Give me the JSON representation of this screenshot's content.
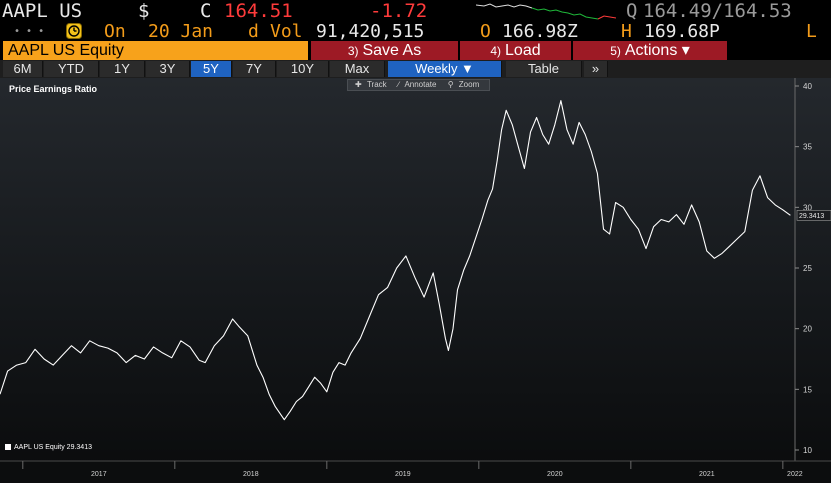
{
  "quote": {
    "ticker": "AAPL US",
    "currency": "$",
    "close_flag": "C",
    "price": "164.51",
    "change": "-1.72",
    "bid_ask_prefix": "Q",
    "bid_ask": "164.49/164.53"
  },
  "trade": {
    "on_label": "On",
    "date": "20 Jan",
    "period": "d",
    "vol_label": "Vol",
    "volume": "91,420,515",
    "open_label": "O",
    "open": "166.98Z",
    "high_label": "H",
    "high": "169.68P",
    "low_label": "L"
  },
  "toolbar": {
    "security": "AAPL US Equity",
    "save_num": "3)",
    "save_label": "Save As",
    "load_num": "4)",
    "load_label": "Load",
    "actions_num": "5)",
    "actions_label": "Actions ▾"
  },
  "ranges": [
    "6M",
    "YTD",
    "1Y",
    "3Y",
    "5Y",
    "7Y",
    "10Y",
    "Max"
  ],
  "selected_range": "5Y",
  "frequency": "Weekly ▼",
  "table_label": "Table",
  "more_label": "»",
  "chart_tools": {
    "track": "Track",
    "annotate": "Annotate",
    "zoom": "Zoom"
  },
  "legend": {
    "name": "AAPL US Equity",
    "value": "29.3413"
  },
  "colors": {
    "accent_orange": "#f7a21b",
    "button_red": "#9d1a25",
    "selected_blue": "#1f63c1",
    "negative_red": "#ff3b3b"
  },
  "chart_data": {
    "type": "line",
    "title": "Price Earnings Ratio",
    "xlabel": "",
    "ylabel": "",
    "ylim": [
      10,
      40
    ],
    "yticks": [
      10,
      15,
      20,
      25,
      30,
      35,
      40
    ],
    "xlim": [
      2016.85,
      2022.08
    ],
    "xticks": [
      "2017",
      "2018",
      "2019",
      "2020",
      "2021",
      "2022"
    ],
    "last_value": "29.3413",
    "legend_position": "bottom-left",
    "series": [
      {
        "name": "AAPL US Equity",
        "x": [
          2016.85,
          2016.9,
          2016.96,
          2017.02,
          2017.08,
          2017.14,
          2017.2,
          2017.26,
          2017.32,
          2017.38,
          2017.44,
          2017.5,
          2017.56,
          2017.62,
          2017.68,
          2017.74,
          2017.8,
          2017.86,
          2017.92,
          2017.98,
          2018.04,
          2018.1,
          2018.16,
          2018.2,
          2018.26,
          2018.32,
          2018.38,
          2018.42,
          2018.48,
          2018.54,
          2018.58,
          2018.62,
          2018.66,
          2018.72,
          2018.76,
          2018.8,
          2018.84,
          2018.88,
          2018.92,
          2018.96,
          2019.0,
          2019.04,
          2019.08,
          2019.12,
          2019.16,
          2019.22,
          2019.28,
          2019.34,
          2019.4,
          2019.46,
          2019.52,
          2019.58,
          2019.64,
          2019.7,
          2019.74,
          2019.78,
          2019.8,
          2019.83,
          2019.86,
          2019.9,
          2019.94,
          2019.98,
          2020.02,
          2020.06,
          2020.09,
          2020.12,
          2020.15,
          2020.18,
          2020.22,
          2020.26,
          2020.3,
          2020.34,
          2020.38,
          2020.42,
          2020.46,
          2020.5,
          2020.54,
          2020.58,
          2020.62,
          2020.66,
          2020.7,
          2020.74,
          2020.78,
          2020.82,
          2020.86,
          2020.9,
          2020.95,
          2021.0,
          2021.05,
          2021.1,
          2021.15,
          2021.2,
          2021.25,
          2021.3,
          2021.35,
          2021.4,
          2021.45,
          2021.5,
          2021.55,
          2021.6,
          2021.65,
          2021.7,
          2021.75,
          2021.8,
          2021.85,
          2021.9,
          2021.95,
          2022.0,
          2022.05
        ],
        "values": [
          14.6,
          16.5,
          17.0,
          17.2,
          18.3,
          17.5,
          17.0,
          17.8,
          18.6,
          18.0,
          19.0,
          18.6,
          18.4,
          18.0,
          17.2,
          17.8,
          17.5,
          18.5,
          18.0,
          17.6,
          19.0,
          18.5,
          17.4,
          17.2,
          18.6,
          19.4,
          20.8,
          20.2,
          19.4,
          17.0,
          16.0,
          14.6,
          13.6,
          12.5,
          13.2,
          14.0,
          14.4,
          15.2,
          16.0,
          15.5,
          14.8,
          16.4,
          17.2,
          17.0,
          18.0,
          19.2,
          21.0,
          22.8,
          23.4,
          25.0,
          26.0,
          24.2,
          22.6,
          24.6,
          22.0,
          19.2,
          18.2,
          20.0,
          23.2,
          24.8,
          26.0,
          27.5,
          29.0,
          30.6,
          31.5,
          33.8,
          36.4,
          38.0,
          36.8,
          35.0,
          33.2,
          36.2,
          37.4,
          36.0,
          35.2,
          36.8,
          38.8,
          36.4,
          35.2,
          37.0,
          36.0,
          34.6,
          32.8,
          28.2,
          27.8,
          30.4,
          30.0,
          29.0,
          28.2,
          26.6,
          28.4,
          29.0,
          28.8,
          29.4,
          28.6,
          30.2,
          28.8,
          26.4,
          25.8,
          26.2,
          26.8,
          27.4,
          28.0,
          31.4,
          32.6,
          30.8,
          30.2,
          29.8,
          29.34
        ]
      }
    ]
  }
}
